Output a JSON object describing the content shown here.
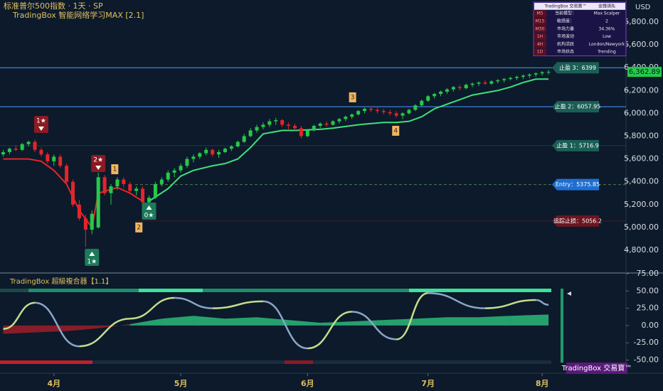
{
  "header": {
    "title": "标准普尔500指数 · 1天 · SP",
    "indicator": "TradingBox  智能网络学习MAX [2.1]",
    "currency": "USD"
  },
  "chart_data": [
    {
      "type": "candlestick",
      "ylim": [
        4607,
        6993
      ],
      "xlim": [
        -0.5,
        87
      ],
      "yticks": [
        {
          "value": 4800,
          "label": "4,800.00"
        },
        {
          "value": 5000,
          "label": "5,000.00"
        },
        {
          "value": 5200,
          "label": "5,200.00"
        },
        {
          "value": 5400,
          "label": "5,400.00"
        },
        {
          "value": 5600,
          "label": "5,600.00"
        },
        {
          "value": 5800,
          "label": "5,800.00"
        },
        {
          "value": 6000,
          "label": "6,000.00"
        },
        {
          "value": 6200,
          "label": "6,200.00"
        },
        {
          "value": 6400,
          "label": "6,400.00"
        },
        {
          "value": 6600,
          "label": "6,600.00"
        },
        {
          "value": 6800,
          "label": "6,800.00"
        }
      ],
      "xticks": [
        {
          "value": 8,
          "label": "4月"
        },
        {
          "value": 28,
          "label": "5月"
        },
        {
          "value": 48,
          "label": "6月"
        },
        {
          "value": 67,
          "label": "7月"
        },
        {
          "value": 85,
          "label": "8月"
        }
      ],
      "up_color": "#26c94a",
      "down_color": "#e5252a",
      "candles": [
        [
          5640,
          5680,
          5620,
          5660
        ],
        [
          5660,
          5700,
          5640,
          5690
        ],
        [
          5690,
          5720,
          5670,
          5680
        ],
        [
          5680,
          5740,
          5670,
          5730
        ],
        [
          5730,
          5760,
          5710,
          5750
        ],
        [
          5750,
          5770,
          5660,
          5680
        ],
        [
          5680,
          5700,
          5620,
          5640
        ],
        [
          5640,
          5660,
          5560,
          5580
        ],
        [
          5580,
          5640,
          5540,
          5620
        ],
        [
          5620,
          5640,
          5520,
          5540
        ],
        [
          5540,
          5560,
          5380,
          5400
        ],
        [
          5400,
          5420,
          5180,
          5200
        ],
        [
          5200,
          5240,
          5060,
          5080
        ],
        [
          5080,
          5110,
          4830,
          4980
        ],
        [
          4980,
          5150,
          4940,
          5120
        ],
        [
          5000,
          5480,
          4990,
          5440
        ],
        [
          5440,
          5460,
          5280,
          5300
        ],
        [
          5300,
          5380,
          5200,
          5360
        ],
        [
          5360,
          5440,
          5330,
          5420
        ],
        [
          5420,
          5440,
          5350,
          5380
        ],
        [
          5380,
          5400,
          5300,
          5320
        ],
        [
          5320,
          5360,
          5280,
          5340
        ],
        [
          5340,
          5360,
          5200,
          5220
        ],
        [
          5220,
          5280,
          5150,
          5260
        ],
        [
          5260,
          5400,
          5250,
          5380
        ],
        [
          5380,
          5440,
          5360,
          5420
        ],
        [
          5420,
          5500,
          5400,
          5480
        ],
        [
          5480,
          5520,
          5440,
          5500
        ],
        [
          5500,
          5560,
          5480,
          5540
        ],
        [
          5540,
          5620,
          5520,
          5600
        ],
        [
          5600,
          5640,
          5570,
          5620
        ],
        [
          5620,
          5660,
          5600,
          5650
        ],
        [
          5650,
          5700,
          5630,
          5680
        ],
        [
          5680,
          5690,
          5620,
          5640
        ],
        [
          5640,
          5680,
          5610,
          5660
        ],
        [
          5660,
          5700,
          5650,
          5690
        ],
        [
          5690,
          5720,
          5670,
          5710
        ],
        [
          5710,
          5760,
          5700,
          5750
        ],
        [
          5750,
          5820,
          5740,
          5800
        ],
        [
          5800,
          5870,
          5790,
          5850
        ],
        [
          5850,
          5900,
          5830,
          5880
        ],
        [
          5880,
          5920,
          5860,
          5900
        ],
        [
          5900,
          5950,
          5880,
          5930
        ],
        [
          5930,
          5960,
          5900,
          5940
        ],
        [
          5940,
          5950,
          5880,
          5900
        ],
        [
          5900,
          5920,
          5860,
          5890
        ],
        [
          5890,
          5910,
          5850,
          5870
        ],
        [
          5870,
          5890,
          5780,
          5800
        ],
        [
          5800,
          5860,
          5790,
          5850
        ],
        [
          5850,
          5900,
          5840,
          5890
        ],
        [
          5890,
          5920,
          5870,
          5910
        ],
        [
          5910,
          5930,
          5880,
          5900
        ],
        [
          5900,
          5940,
          5890,
          5930
        ],
        [
          5930,
          5960,
          5910,
          5950
        ],
        [
          5950,
          5980,
          5930,
          5970
        ],
        [
          5970,
          6000,
          5950,
          5990
        ],
        [
          5990,
          6030,
          5980,
          6020
        ],
        [
          6020,
          6050,
          6000,
          6040
        ],
        [
          6040,
          6060,
          6010,
          6030
        ],
        [
          6030,
          6050,
          6000,
          6020
        ],
        [
          6020,
          6040,
          5990,
          6010
        ],
        [
          6010,
          6030,
          5980,
          6000
        ],
        [
          6000,
          6020,
          5960,
          5980
        ],
        [
          5980,
          6010,
          5950,
          6000
        ],
        [
          6000,
          6040,
          5990,
          6030
        ],
        [
          6030,
          6080,
          6020,
          6070
        ],
        [
          6070,
          6120,
          6060,
          6110
        ],
        [
          6110,
          6160,
          6100,
          6150
        ],
        [
          6150,
          6180,
          6130,
          6170
        ],
        [
          6170,
          6200,
          6150,
          6190
        ],
        [
          6190,
          6220,
          6170,
          6210
        ],
        [
          6210,
          6240,
          6190,
          6230
        ],
        [
          6230,
          6250,
          6200,
          6220
        ],
        [
          6220,
          6260,
          6210,
          6250
        ],
        [
          6250,
          6270,
          6230,
          6260
        ],
        [
          6260,
          6280,
          6240,
          6270
        ],
        [
          6270,
          6290,
          6250,
          6260
        ],
        [
          6260,
          6290,
          6250,
          6280
        ],
        [
          6280,
          6300,
          6260,
          6290
        ],
        [
          6290,
          6310,
          6270,
          6300
        ],
        [
          6300,
          6320,
          6290,
          6310
        ],
        [
          6310,
          6330,
          6290,
          6320
        ],
        [
          6320,
          6340,
          6300,
          6330
        ],
        [
          6330,
          6350,
          6310,
          6340
        ],
        [
          6340,
          6360,
          6320,
          6350
        ],
        [
          6350,
          6370,
          6330,
          6360
        ],
        [
          6360,
          6380,
          6340,
          6362.89
        ]
      ],
      "last_price": {
        "value": 6362.89,
        "label": "6,362.89"
      },
      "series": [
        {
          "color": "#e5252a",
          "x": [
            0,
            4,
            6,
            8,
            10,
            12,
            14,
            15,
            18,
            20,
            22
          ],
          "values": [
            5600,
            5600,
            5580,
            5500,
            5380,
            5150,
            5000,
            5300,
            5350,
            5300,
            5230
          ]
        },
        {
          "color": "#3fe07a",
          "x": [
            23,
            26,
            28,
            30,
            33,
            35,
            37,
            39,
            41,
            44,
            46,
            50,
            52,
            56,
            60,
            62,
            64,
            66,
            68,
            70,
            72,
            74,
            76,
            78,
            80,
            82,
            84,
            86
          ],
          "values": [
            5230,
            5340,
            5450,
            5500,
            5540,
            5560,
            5600,
            5700,
            5820,
            5850,
            5850,
            5860,
            5870,
            5900,
            5920,
            5920,
            5930,
            5970,
            6040,
            6080,
            6120,
            6160,
            6180,
            6200,
            6230,
            6270,
            6300,
            6300
          ]
        }
      ],
      "levels": [
        {
          "label": "止盈 3：6399",
          "value": 6399,
          "color": "#1b5e55",
          "line": "#3f7fd8"
        },
        {
          "label": "止盈 2：6057.95",
          "value": 6057.95,
          "color": "#1b5e55",
          "line": "#3f7fd8"
        },
        {
          "label": "止盈 1：5716.9",
          "value": 5716.9,
          "color": "#1b5e55",
          "line": "#1e3d3a"
        },
        {
          "label": "Entry：5375.85",
          "value": 5375.85,
          "color": "#1f6fd0",
          "line": "#4d7a4a"
        },
        {
          "label": "追踪止损：5056.2",
          "value": 5056.2,
          "color": "#6b1620",
          "line": "#4a1a22"
        }
      ],
      "signals": [
        {
          "label": "1★",
          "x": 6,
          "y": 5903,
          "color": "#8b1a22"
        },
        {
          "label": "2★",
          "x": 15,
          "y": 5560,
          "color": "#8b1a22"
        },
        {
          "label": "0★",
          "x": 23,
          "y": 5143,
          "color": "#1c7a5a"
        },
        {
          "label": "1★",
          "x": 14,
          "y": 4738,
          "color": "#1c7a5a"
        }
      ],
      "markers": [
        {
          "label": "1",
          "x": 17.6,
          "y": 5510
        },
        {
          "label": "2",
          "x": 21.4,
          "y": 5000
        },
        {
          "label": "3",
          "x": 55.1,
          "y": 6140
        },
        {
          "label": "4",
          "x": 61.9,
          "y": 5847
        }
      ]
    },
    {
      "type": "oscillator",
      "title": "TradingBox   超級複合器【1.1】",
      "ylim": [
        -69,
        75
      ],
      "xlim": [
        -0.5,
        87
      ],
      "yticks": [
        {
          "value": 75,
          "label": "75.00"
        },
        {
          "value": 50,
          "label": "50.00"
        },
        {
          "value": 25,
          "label": "25.00"
        },
        {
          "value": 0,
          "label": "0.00"
        },
        {
          "value": -25,
          "label": "-25.00"
        },
        {
          "value": -50,
          "label": "-50.00"
        }
      ],
      "series": [
        {
          "name": "wave",
          "up_color": "#c3dc8a",
          "down_color": "#8aa6c8",
          "x": [
            0,
            5,
            12,
            20,
            27,
            33,
            41,
            48,
            55,
            62,
            67,
            76,
            84,
            86
          ],
          "values": [
            -5,
            33,
            -30,
            10,
            40,
            25,
            35,
            -33,
            20,
            -20,
            47,
            25,
            37,
            30
          ]
        },
        {
          "name": "flow",
          "pos_color": "#2fcf86",
          "neg_color": "#b01f2a",
          "x": [
            0,
            5,
            10,
            15,
            20,
            25,
            30,
            35,
            40,
            45,
            50,
            55,
            60,
            65,
            70,
            75,
            80,
            86
          ],
          "values": [
            -12,
            -10,
            -8,
            -4,
            2,
            10,
            14,
            10,
            12,
            8,
            4,
            6,
            8,
            10,
            12,
            12,
            14,
            16
          ]
        }
      ],
      "badge": "TradingBox 交易寶™"
    }
  ],
  "info_table": {
    "header": [
      "TradingBox 交易寶™",
      "金鋒領先"
    ],
    "rows": [
      [
        "M5",
        "当前模型：",
        "Max Scalper"
      ],
      [
        "M15",
        "敏感度：",
        "2"
      ],
      [
        "M30",
        "市场力量",
        "34.36%"
      ],
      [
        "1H",
        "市场波动",
        "Low"
      ],
      [
        "4H",
        "机构活跃",
        "London/Newyork"
      ],
      [
        "1D",
        "市场状态",
        "Trending"
      ]
    ]
  }
}
